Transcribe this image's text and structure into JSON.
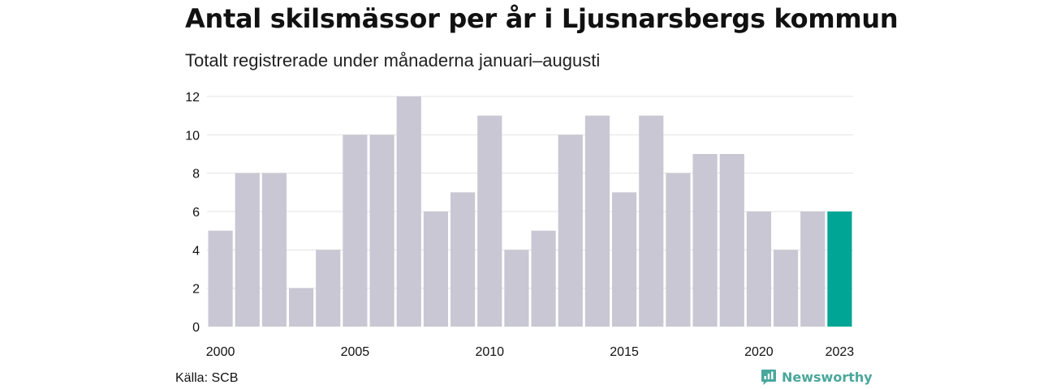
{
  "header": {
    "title": "Antal skilsmässor per år i Ljusnarsbergs kommun",
    "subtitle": "Totalt registrerade under månaderna januari–augusti"
  },
  "footer": {
    "source": "Källa: SCB",
    "brand": "Newsworthy",
    "brand_icon": "newsworthy-logo-icon"
  },
  "colors": {
    "bar": "#c8c7d3",
    "highlight": "#00a596",
    "grid": "#e3e3e3",
    "brand": "#4aa79c"
  },
  "chart_data": {
    "type": "bar",
    "title": "Antal skilsmässor per år i Ljusnarsbergs kommun",
    "subtitle": "Totalt registrerade under månaderna januari–augusti",
    "categories": [
      "2000",
      "2001",
      "2002",
      "2003",
      "2004",
      "2005",
      "2006",
      "2007",
      "2008",
      "2009",
      "2010",
      "2011",
      "2012",
      "2013",
      "2014",
      "2015",
      "2016",
      "2017",
      "2018",
      "2019",
      "2020",
      "2021",
      "2022",
      "2023"
    ],
    "values": [
      5,
      8,
      8,
      2,
      4,
      10,
      10,
      12,
      6,
      7,
      11,
      4,
      5,
      10,
      11,
      7,
      11,
      8,
      9,
      9,
      6,
      4,
      6,
      6
    ],
    "highlight_index": 23,
    "x_tick_labels": [
      "2000",
      "2005",
      "2010",
      "2015",
      "2020",
      "2023"
    ],
    "y_ticks": [
      0,
      2,
      4,
      6,
      8,
      10,
      12
    ],
    "ylim": [
      0,
      12
    ],
    "xlabel": "",
    "ylabel": "",
    "grid": true,
    "legend": "none"
  }
}
